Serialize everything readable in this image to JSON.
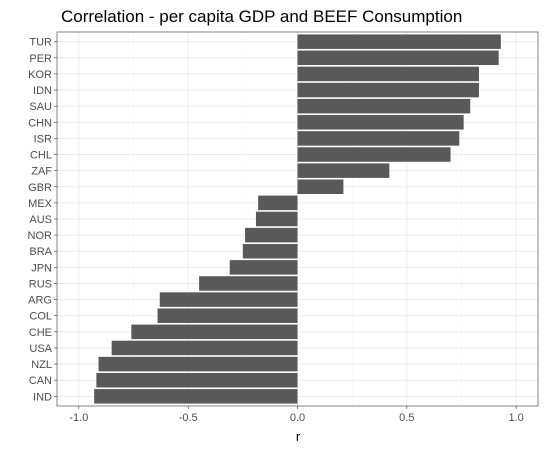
{
  "chart_data": {
    "type": "bar",
    "orientation": "horizontal",
    "title": "Correlation - per capita GDP and BEEF Consumption",
    "xlabel": "r",
    "ylabel": "",
    "xlim": [
      -1.0,
      1.0
    ],
    "x_ticks": [
      -1.0,
      -0.5,
      0.0,
      0.5,
      1.0
    ],
    "x_tick_labels": [
      "-1.0",
      "-0.5",
      "0.0",
      "0.5",
      "1.0"
    ],
    "grid": true,
    "legend": "none",
    "bar_color": "#595959",
    "categories": [
      "TUR",
      "PER",
      "KOR",
      "IDN",
      "SAU",
      "CHN",
      "ISR",
      "CHL",
      "ZAF",
      "GBR",
      "MEX",
      "AUS",
      "NOR",
      "BRA",
      "JPN",
      "RUS",
      "ARG",
      "COL",
      "CHE",
      "USA",
      "NZL",
      "CAN",
      "IND"
    ],
    "values": [
      0.93,
      0.92,
      0.83,
      0.83,
      0.79,
      0.76,
      0.74,
      0.7,
      0.42,
      0.21,
      -0.18,
      -0.19,
      -0.24,
      -0.25,
      -0.31,
      -0.45,
      -0.63,
      -0.64,
      -0.76,
      -0.85,
      -0.91,
      -0.92,
      -0.93
    ]
  }
}
